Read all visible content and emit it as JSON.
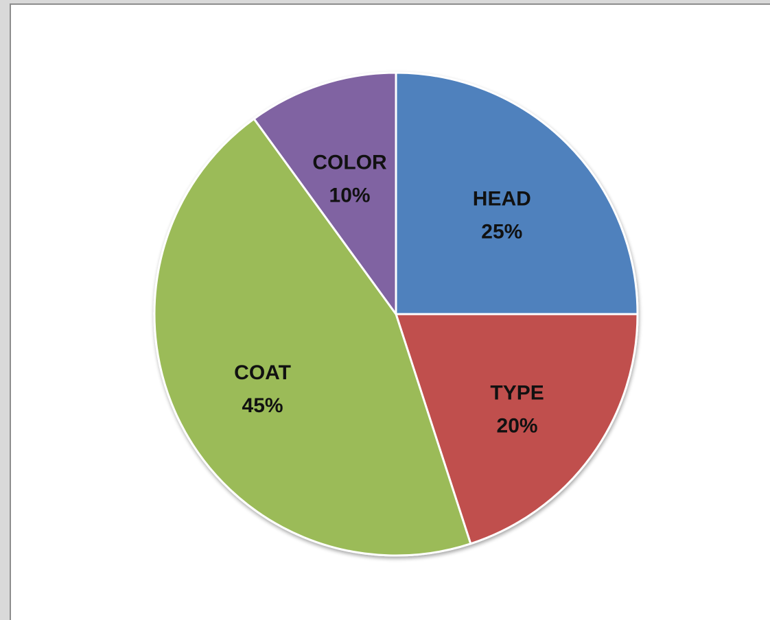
{
  "chart_data": {
    "type": "pie",
    "title": "",
    "legend": "none",
    "start_angle_deg": 0,
    "direction": "clockwise",
    "slices": [
      {
        "name": "HEAD",
        "value": 25,
        "label": "25%",
        "color": "#4f81bd"
      },
      {
        "name": "TYPE",
        "value": 20,
        "label": "20%",
        "color": "#c0504d"
      },
      {
        "name": "COAT",
        "value": 45,
        "label": "45%",
        "color": "#9bbb59"
      },
      {
        "name": "COLOR",
        "value": 10,
        "label": "10%",
        "color": "#8064a2"
      }
    ]
  }
}
